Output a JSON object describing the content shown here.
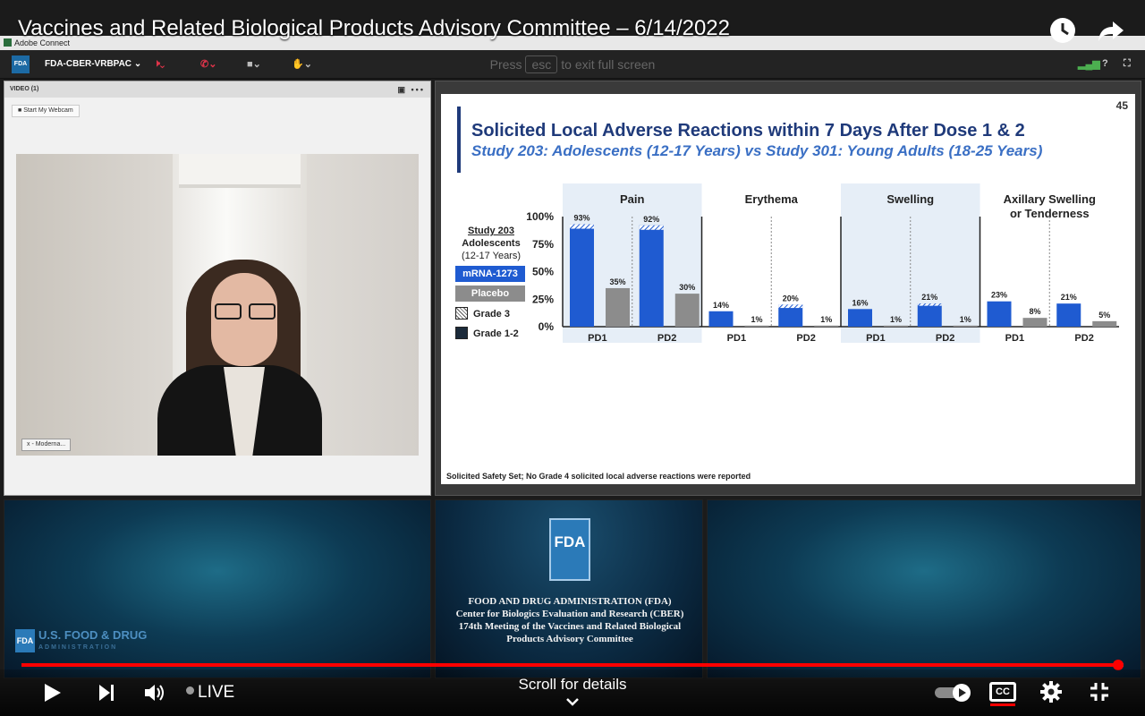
{
  "video_title": "Vaccines and Related Biological Products Advisory Committee – 6/14/2022",
  "app": {
    "window_title": "Adobe Connect",
    "room_name": "FDA-CBER-VRBPAC",
    "logo_text": "FDA",
    "fullscreen_hint": {
      "pre": "Press",
      "key": "esc",
      "post": "to exit full screen"
    }
  },
  "video_pod": {
    "header": "VIDEO (1)",
    "webcam_button": "Start My Webcam",
    "participant_label": "x - Moderna..."
  },
  "slide": {
    "page_number": "45",
    "title": "Solicited Local Adverse Reactions within 7 Days After Dose 1 & 2",
    "subtitle": "Study 203: Adolescents (12-17 Years) vs Study 301: Young Adults (18-25 Years)",
    "footnote": "Solicited Safety Set; No Grade 4 solicited local adverse reactions were reported",
    "legend": {
      "title": "Study 203",
      "line2": "Adolescents",
      "line3": "(12-17 Years)",
      "series_1": "mRNA-1273",
      "series_2": "Placebo",
      "grade3": "Grade 3",
      "grade12": "Grade 1-2"
    }
  },
  "chart_data": {
    "type": "bar",
    "title": "Solicited Local Adverse Reactions within 7 Days After Dose 1 & 2",
    "ylim": [
      0,
      100
    ],
    "yticks": [
      "0%",
      "25%",
      "50%",
      "75%",
      "100%"
    ],
    "groups": [
      "Pain",
      "Erythema",
      "Swelling",
      "Axillary Swelling or Tenderness"
    ],
    "categories": [
      "PD1",
      "PD2"
    ],
    "series": [
      {
        "name": "mRNA-1273",
        "color": "#1f5bd1",
        "values": [
          [
            93,
            92
          ],
          [
            14,
            20
          ],
          [
            16,
            21
          ],
          [
            23,
            21
          ]
        ],
        "labels": [
          [
            "93%",
            "92%"
          ],
          [
            "14%",
            "20%"
          ],
          [
            "16%",
            "21%"
          ],
          [
            "23%",
            "21%"
          ]
        ]
      },
      {
        "name": "Placebo",
        "color": "#8c8c8c",
        "values": [
          [
            35,
            30
          ],
          [
            1,
            1
          ],
          [
            1,
            1
          ],
          [
            8,
            5
          ]
        ],
        "labels": [
          [
            "35%",
            "30%"
          ],
          [
            "1%",
            "1%"
          ],
          [
            "1%",
            "1%"
          ],
          [
            "8%",
            "5%"
          ]
        ]
      }
    ],
    "grade3_mrna": [
      [
        4,
        4
      ],
      [
        0,
        3
      ],
      [
        0,
        2
      ],
      [
        0,
        0
      ]
    ],
    "shaded_groups": [
      "Pain",
      "Swelling"
    ],
    "colors": {
      "mrna": "#1f5bd1",
      "placebo": "#8c8c8c",
      "shade": "#e6eef7",
      "axis": "#222222"
    }
  },
  "fda_panel": {
    "logo": "FDA",
    "lines": [
      "FOOD AND DRUG ADMINISTRATION (FDA)",
      "Center for Biologics Evaluation and Research (CBER)",
      "174th Meeting of the Vaccines and Related Biological",
      "Products Advisory Committee"
    ],
    "brand": "U.S. FOOD & DRUG",
    "brand_sub": "ADMINISTRATION",
    "brand_logo": "FDA"
  },
  "player": {
    "live_label": "LIVE",
    "scroll_hint": "Scroll for details",
    "cc_label": "CC",
    "progress_fraction": 0.99
  }
}
